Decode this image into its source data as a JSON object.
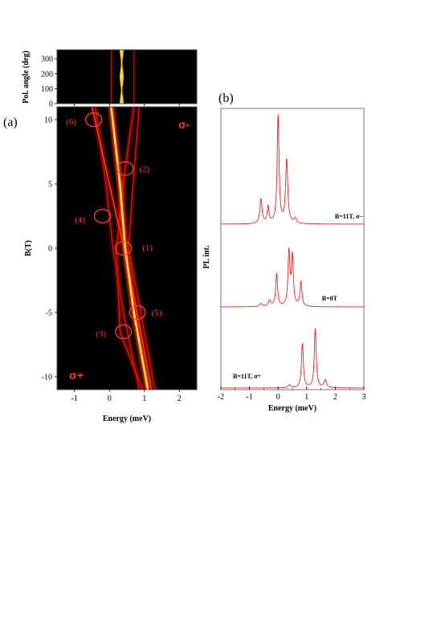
{
  "figure": {
    "panel_a_label": "(a)",
    "panel_b_label": "(b)"
  },
  "chart_data": [
    {
      "panel": "(a) top",
      "type": "heatmap",
      "xlabel": "",
      "ylabel": "Pol. angle (deg)",
      "xlim": [
        -1.5,
        2.5
      ],
      "ylim": [
        0,
        360
      ],
      "yticks": [
        0,
        100,
        200,
        300
      ],
      "xticks": [
        -1,
        0,
        1,
        2
      ],
      "colormap": [
        "#000000",
        "#7a0000",
        "#d40000",
        "#ff5a00",
        "#ffc000",
        "#ffffe0"
      ],
      "bright_line_energy": 0.35,
      "weak_line_energies": [
        0.05,
        0.7
      ],
      "bright_line_max_angles": [
        0,
        90,
        180,
        270,
        360
      ]
    },
    {
      "panel": "(a)",
      "type": "heatmap",
      "xlabel": "Energy (meV)",
      "ylabel": "B(T)",
      "xlim": [
        -1.5,
        2.5
      ],
      "ylim": [
        -11,
        11
      ],
      "xticks": [
        -1,
        0,
        1,
        2
      ],
      "yticks": [
        -10,
        -5,
        0,
        5,
        10
      ],
      "colormap": [
        "#000000",
        "#7a0000",
        "#d40000",
        "#ff5a00",
        "#ffc000",
        "#ffffe0"
      ],
      "lines": [
        {
          "intensity": 1.0,
          "B": [
            11,
            5,
            0,
            -5,
            -11
          ],
          "E": [
            0.05,
            0.3,
            0.45,
            0.7,
            1.1
          ]
        },
        {
          "intensity": 0.55,
          "B": [
            11,
            6.2,
            2.5,
            0,
            -4,
            -8,
            -11
          ],
          "E": [
            -0.5,
            -0.1,
            0.2,
            0.42,
            0.72,
            1.0,
            1.2
          ]
        },
        {
          "intensity": 0.45,
          "B": [
            11,
            6.2,
            0,
            -6.5,
            -11
          ],
          "E": [
            0.7,
            0.45,
            0.2,
            0.3,
            0.95
          ]
        },
        {
          "intensity": 0.35,
          "B": [
            11,
            5,
            0,
            -5,
            -11
          ],
          "E": [
            -0.4,
            -0.1,
            0.1,
            0.4,
            0.85
          ]
        },
        {
          "intensity": 0.25,
          "B": [
            11,
            4,
            0,
            -5,
            -11
          ],
          "E": [
            0.85,
            0.65,
            0.55,
            0.9,
            1.3
          ]
        }
      ],
      "circled_points": [
        {
          "label": "(1)",
          "E": 0.4,
          "B": 0
        },
        {
          "label": "(2)",
          "E": 0.45,
          "B": 6.2
        },
        {
          "label": "(3)",
          "E": 0.4,
          "B": -6.5
        },
        {
          "label": "(4)",
          "E": -0.2,
          "B": 2.5
        },
        {
          "label": "(5)",
          "E": 0.8,
          "B": -5
        },
        {
          "label": "(6)",
          "E": -0.45,
          "B": 10
        }
      ],
      "annotations": [
        "σ-",
        "σ+"
      ]
    },
    {
      "panel": "(b)",
      "type": "line",
      "xlabel": "Energy (meV)",
      "ylabel": "PL int.",
      "xlim": [
        -2,
        3
      ],
      "xticks": [
        -2,
        -1,
        0,
        1,
        2,
        3
      ],
      "series": [
        {
          "name": "B=11T, σ−",
          "offset": 2.0,
          "peaks": [
            {
              "E": -0.6,
              "amp": 0.25,
              "w": 0.045
            },
            {
              "E": -0.35,
              "amp": 0.17,
              "w": 0.04
            },
            {
              "E": 0.0,
              "amp": 1.1,
              "w": 0.04
            },
            {
              "E": 0.3,
              "amp": 0.65,
              "w": 0.045
            },
            {
              "E": 0.6,
              "amp": 0.05,
              "w": 0.05
            }
          ]
        },
        {
          "name": "B=0T",
          "offset": 1.0,
          "peaks": [
            {
              "E": -0.6,
              "amp": 0.03,
              "w": 0.06
            },
            {
              "E": -0.3,
              "amp": 0.06,
              "w": 0.05
            },
            {
              "E": -0.05,
              "amp": 0.33,
              "w": 0.04
            },
            {
              "E": 0.38,
              "amp": 0.55,
              "w": 0.04
            },
            {
              "E": 0.5,
              "amp": 0.5,
              "w": 0.04
            },
            {
              "E": 0.8,
              "amp": 0.25,
              "w": 0.04
            }
          ]
        },
        {
          "name": "B=11T, σ+",
          "offset": 0.0,
          "peaks": [
            {
              "E": 0.4,
              "amp": 0.03,
              "w": 0.05
            },
            {
              "E": 0.85,
              "amp": 0.45,
              "w": 0.04
            },
            {
              "E": 1.3,
              "amp": 0.6,
              "w": 0.04
            },
            {
              "E": 1.65,
              "amp": 0.08,
              "w": 0.05
            }
          ]
        }
      ]
    }
  ]
}
